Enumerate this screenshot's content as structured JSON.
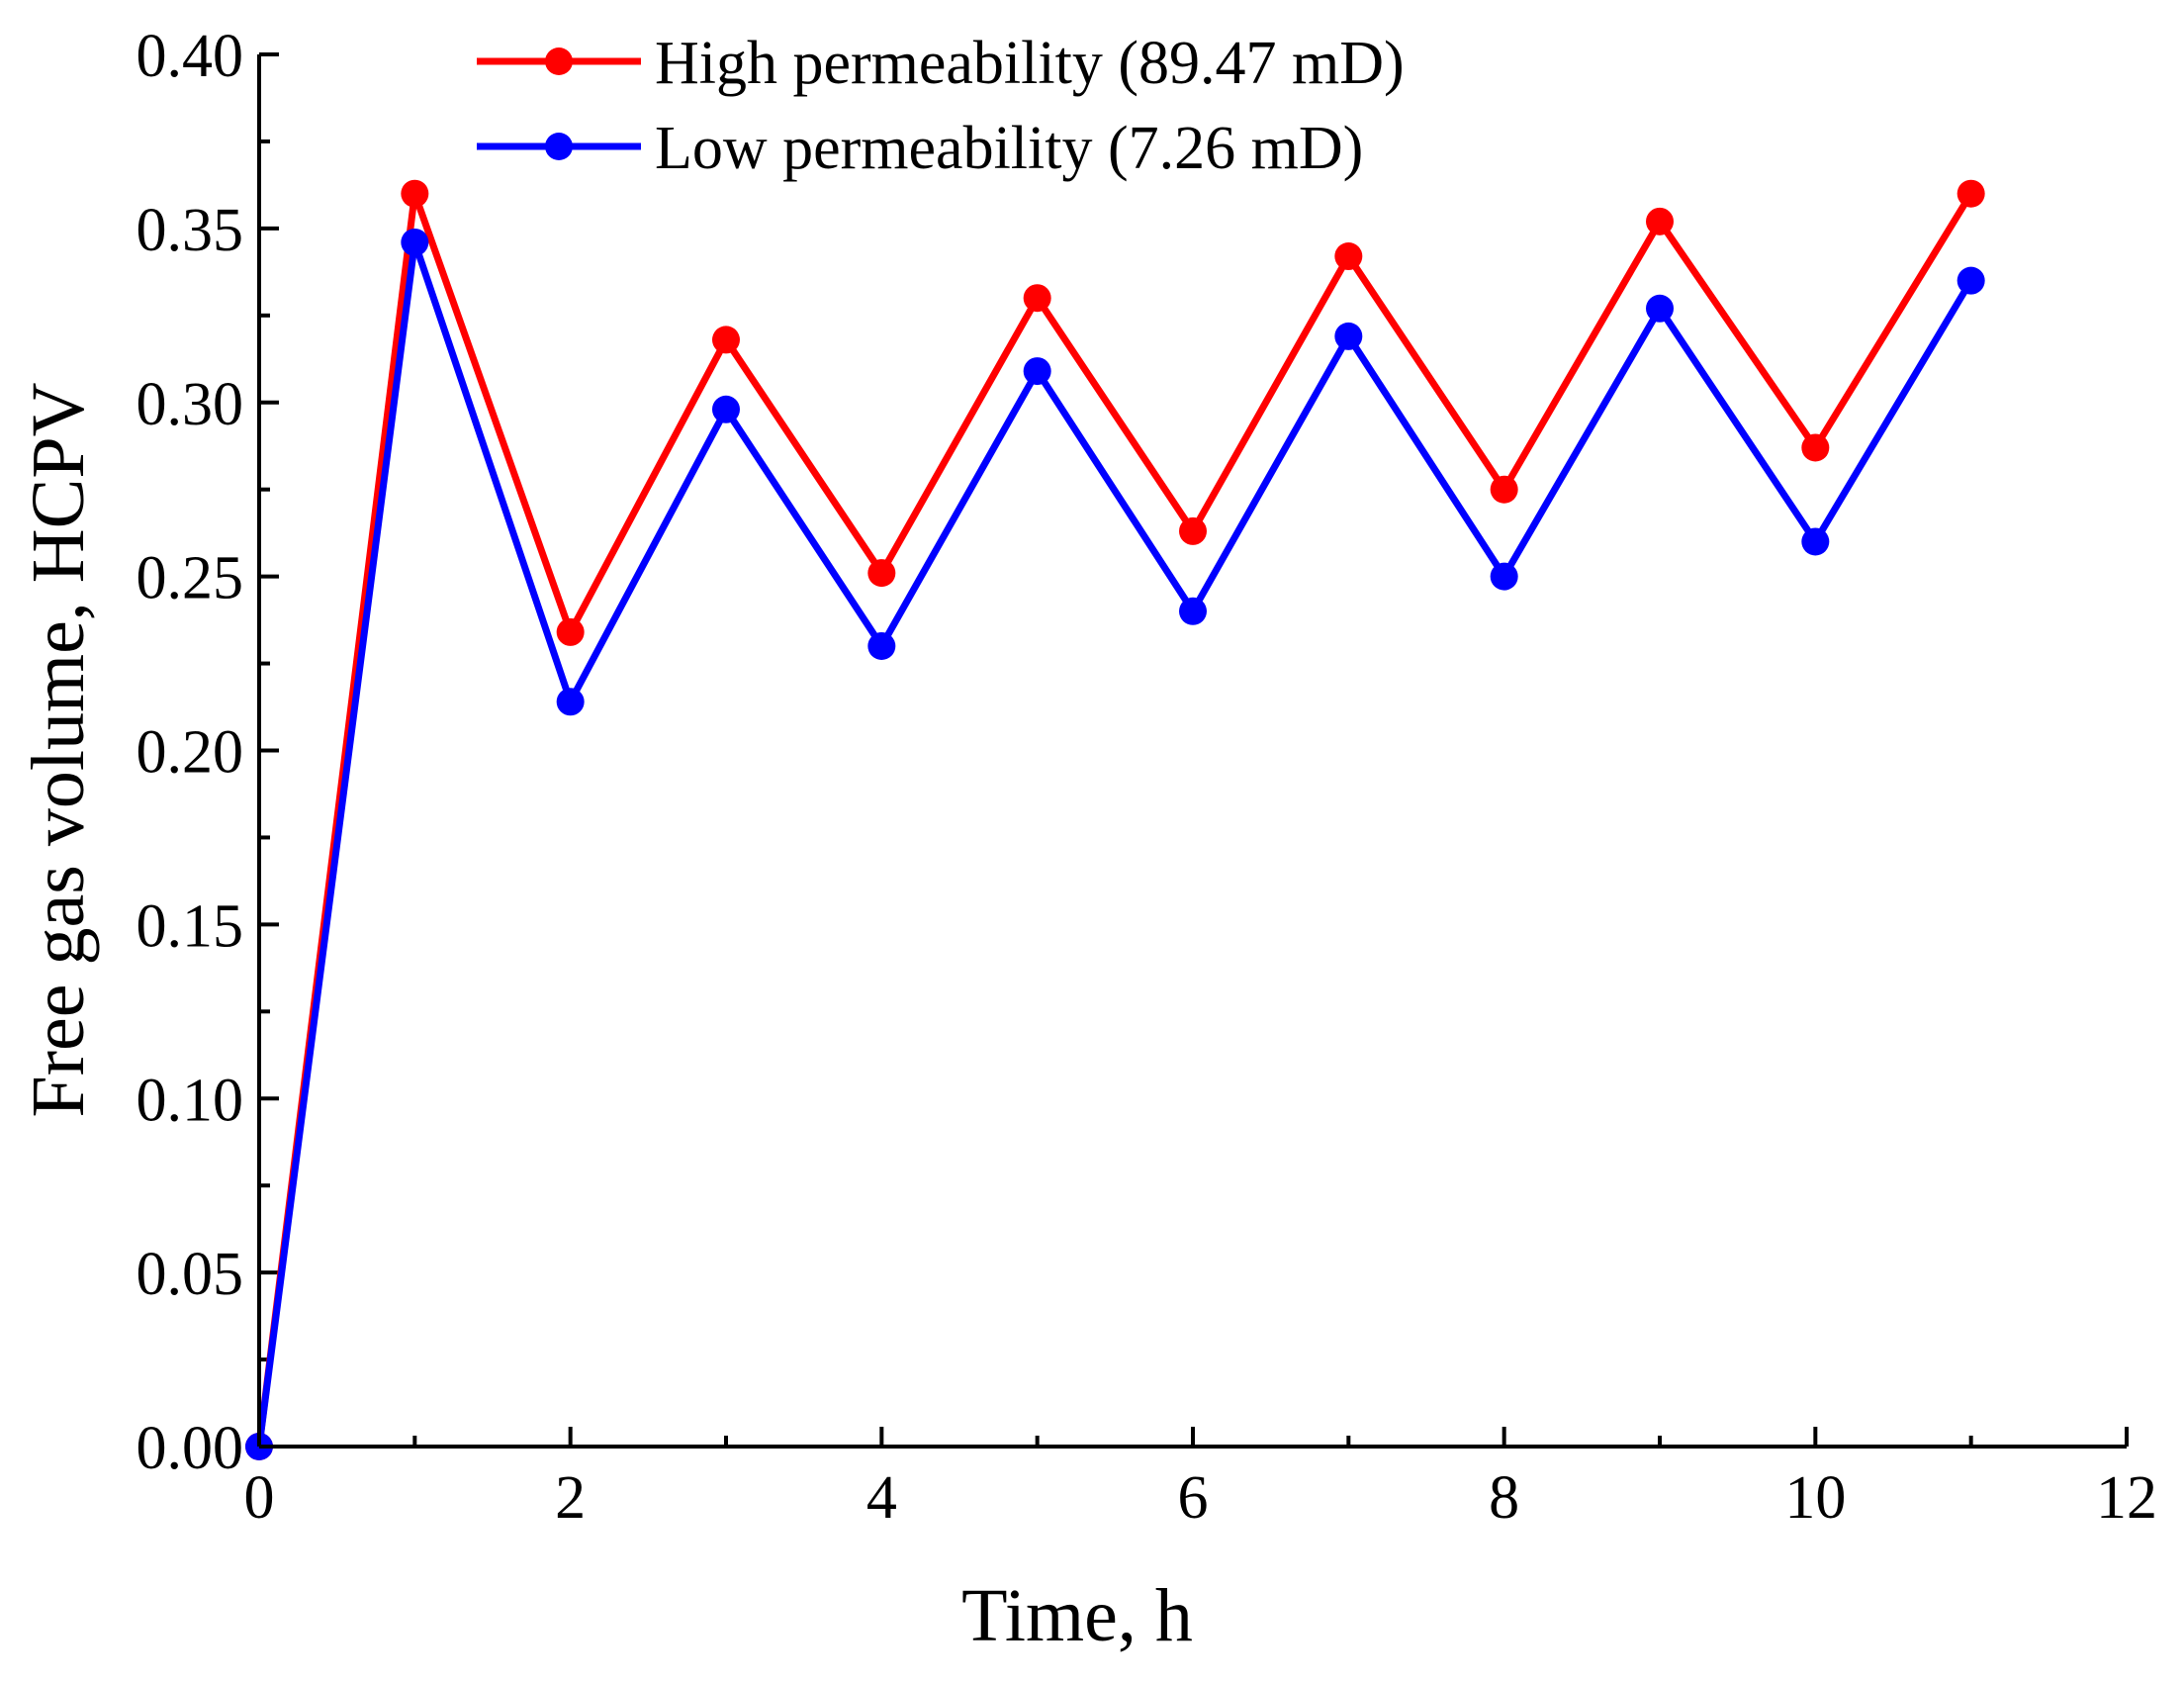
{
  "chart_data": {
    "type": "line",
    "title": "",
    "xlabel": "Time, h",
    "ylabel": "Free gas volume, HCPV",
    "xlim": [
      0,
      12
    ],
    "ylim": [
      0,
      0.4
    ],
    "x_ticks": [
      0,
      2,
      4,
      6,
      8,
      10,
      12
    ],
    "x_tick_labels": [
      "0",
      "2",
      "4",
      "6",
      "8",
      "10",
      "12"
    ],
    "y_ticks": [
      0,
      0.05,
      0.1,
      0.15,
      0.2,
      0.25,
      0.3,
      0.35,
      0.4
    ],
    "y_tick_labels": [
      "0.00",
      "0.05",
      "0.10",
      "0.15",
      "0.20",
      "0.25",
      "0.30",
      "0.35",
      "0.40"
    ],
    "grid": false,
    "legend_position": "top-center",
    "series": [
      {
        "name": "High permeability (89.47 mD)",
        "color": "#ff0000",
        "x": [
          0,
          1,
          2,
          3,
          4,
          5,
          6,
          7,
          8,
          9,
          10,
          11
        ],
        "y": [
          0.0,
          0.36,
          0.234,
          0.318,
          0.251,
          0.33,
          0.263,
          0.342,
          0.275,
          0.352,
          0.287,
          0.36
        ]
      },
      {
        "name": "Low permeability (7.26 mD)",
        "color": "#0000ff",
        "x": [
          0,
          1,
          2,
          3,
          4,
          5,
          6,
          7,
          8,
          9,
          10,
          11
        ],
        "y": [
          0.0,
          0.346,
          0.214,
          0.298,
          0.23,
          0.309,
          0.24,
          0.319,
          0.25,
          0.327,
          0.26,
          0.335
        ]
      }
    ]
  }
}
